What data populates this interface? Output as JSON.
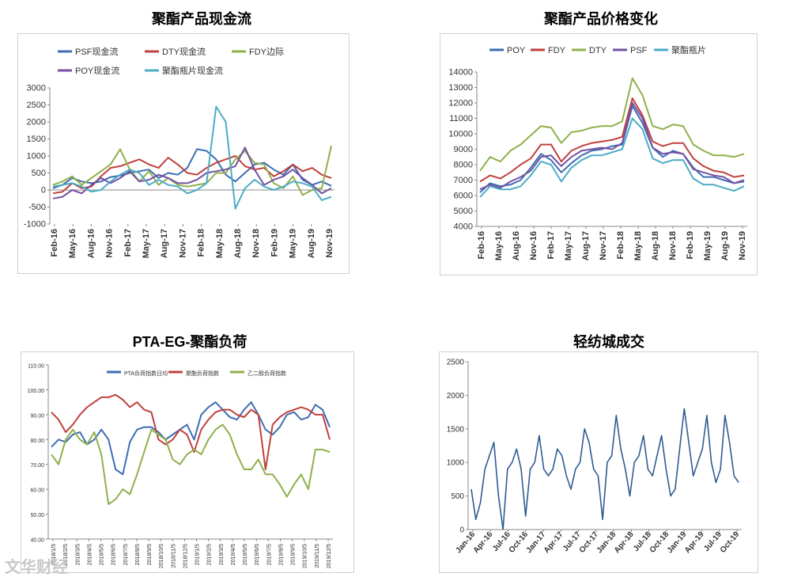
{
  "titles": {
    "c1": "聚酯产品现金流",
    "c2": "聚酯产品价格变化",
    "c3": "PTA-EG-聚酯负荷",
    "c4": "轻纺城成交"
  },
  "watermark": "文华财经",
  "chart_data": [
    {
      "type": "line",
      "title": "聚酯产品现金流",
      "xlabel": "",
      "ylabel": "",
      "ylim": [
        -1000,
        3000
      ],
      "yticks": [
        -1000,
        -500,
        0,
        500,
        1000,
        1500,
        2000,
        2500,
        3000
      ],
      "xticks": [
        "Feb-16",
        "May-16",
        "Aug-16",
        "Nov-16",
        "Feb-17",
        "May-17",
        "Aug-17",
        "Nov-17",
        "Feb-18",
        "May-18",
        "Aug-18",
        "Nov-18",
        "Feb-19",
        "May-19",
        "Aug-19",
        "Nov-19"
      ],
      "legend_position": "top",
      "grid": false,
      "series": [
        {
          "name": "PSF现金流",
          "color": "#3e6db3",
          "values": [
            50,
            150,
            350,
            250,
            200,
            250,
            380,
            420,
            500,
            550,
            600,
            350,
            500,
            450,
            650,
            1200,
            1150,
            900,
            450,
            250,
            500,
            750,
            800,
            600,
            450,
            750,
            300,
            150,
            250,
            120
          ]
        },
        {
          "name": "DTY现金流",
          "color": "#c0403c",
          "values": [
            -100,
            -50,
            200,
            50,
            100,
            400,
            650,
            700,
            800,
            900,
            750,
            650,
            950,
            750,
            500,
            450,
            650,
            800,
            900,
            1000,
            700,
            600,
            650,
            400,
            550,
            750,
            550,
            650,
            450,
            350
          ]
        },
        {
          "name": "FDY边际",
          "color": "#8fb04a",
          "values": [
            150,
            250,
            400,
            150,
            350,
            550,
            750,
            1200,
            600,
            250,
            550,
            150,
            350,
            150,
            100,
            150,
            200,
            500,
            500,
            900,
            1150,
            800,
            750,
            200,
            50,
            400,
            -150,
            0,
            50,
            1300
          ]
        },
        {
          "name": "POY现金流",
          "color": "#7351a0",
          "values": [
            -250,
            -200,
            0,
            -100,
            150,
            350,
            200,
            350,
            550,
            250,
            300,
            450,
            350,
            200,
            200,
            300,
            500,
            550,
            600,
            700,
            1250,
            600,
            150,
            300,
            400,
            600,
            350,
            150,
            -100,
            50
          ]
        },
        {
          "name": "聚酯瓶片现金流",
          "color": "#4bacc6",
          "values": [
            100,
            150,
            200,
            100,
            -50,
            0,
            250,
            450,
            600,
            500,
            150,
            300,
            150,
            100,
            -100,
            0,
            200,
            2450,
            2000,
            -550,
            50,
            300,
            100,
            0,
            100,
            250,
            200,
            100,
            -300,
            -200
          ]
        }
      ]
    },
    {
      "type": "line",
      "title": "聚酯产品价格变化",
      "xlabel": "",
      "ylabel": "",
      "ylim": [
        4000,
        14000
      ],
      "yticks": [
        4000,
        5000,
        6000,
        7000,
        8000,
        9000,
        10000,
        11000,
        12000,
        13000,
        14000
      ],
      "xticks": [
        "Feb-16",
        "May-16",
        "Aug-16",
        "Nov-16",
        "Feb-17",
        "May-17",
        "Aug-17",
        "Nov-17",
        "Feb-18",
        "May-18",
        "Aug-18",
        "Nov-18",
        "Feb-19",
        "May-19",
        "Aug-19",
        "Nov-19"
      ],
      "legend_position": "top",
      "grid": false,
      "series": [
        {
          "name": "POY",
          "color": "#3e6db3",
          "values": [
            6200,
            6800,
            6600,
            6700,
            7000,
            7800,
            8700,
            8300,
            7500,
            8100,
            8600,
            8900,
            9000,
            9200,
            9300,
            11800,
            10700,
            9100,
            8500,
            8900,
            8700,
            7800,
            7200,
            7200,
            7000,
            6800,
            6900
          ]
        },
        {
          "name": "FDY",
          "color": "#c0403c",
          "values": [
            6900,
            7300,
            7100,
            7500,
            8000,
            8400,
            9300,
            9300,
            8200,
            8900,
            9200,
            9400,
            9500,
            9600,
            9800,
            12300,
            11200,
            9500,
            9200,
            9400,
            9400,
            8400,
            7900,
            7600,
            7500,
            7200,
            7300
          ]
        },
        {
          "name": "DTY",
          "color": "#8fb04a",
          "values": [
            7600,
            8500,
            8200,
            8900,
            9300,
            9900,
            10500,
            10400,
            9400,
            10100,
            10200,
            10400,
            10500,
            10500,
            10800,
            13600,
            12500,
            10500,
            10300,
            10600,
            10500,
            9300,
            8900,
            8600,
            8600,
            8500,
            8700
          ]
        },
        {
          "name": "PSF",
          "color": "#7351a0",
          "values": [
            6400,
            6700,
            6500,
            6900,
            7200,
            7600,
            8500,
            8600,
            7900,
            8500,
            8900,
            9000,
            9100,
            9000,
            9400,
            12000,
            11000,
            9100,
            8700,
            8800,
            8700,
            7700,
            7500,
            7300,
            7200,
            6800,
            7000
          ]
        },
        {
          "name": "聚酯瓶片",
          "color": "#4bacc6",
          "values": [
            5900,
            6600,
            6400,
            6400,
            6600,
            7300,
            8200,
            8000,
            6900,
            7800,
            8300,
            8600,
            8600,
            8800,
            9000,
            11000,
            10300,
            8400,
            8100,
            8300,
            8300,
            7100,
            6700,
            6700,
            6500,
            6300,
            6600
          ]
        }
      ]
    },
    {
      "type": "line",
      "title": "PTA-EG-聚酯负荷",
      "xlabel": "",
      "ylabel": "",
      "ylim": [
        40,
        110
      ],
      "yticks": [
        "40.00",
        "50.00",
        "60.00",
        "70.00",
        "80.00",
        "90.00",
        "100.00",
        "110.00"
      ],
      "xticks": [
        "2018/1/5",
        "2018/2/5",
        "2018/3/5",
        "2018/4/5",
        "2018/5/5",
        "2018/6/5",
        "2018/7/5",
        "2018/8/5",
        "2018/9/5",
        "2018/10/5",
        "2018/11/5",
        "2018/12/5",
        "2019/1/5",
        "2019/2/5",
        "2019/3/5",
        "2019/4/5",
        "2019/5/5",
        "2019/6/5",
        "2019/7/5",
        "2019/8/5",
        "2019/9/5",
        "2019/10/5",
        "2019/11/5",
        "2019/12/5"
      ],
      "legend_position": "top",
      "grid": false,
      "series": [
        {
          "name": "PTA负荷指数日均",
          "color": "#3e6db3",
          "values": [
            77,
            80,
            79,
            82,
            83,
            78,
            80,
            84,
            80,
            68,
            66,
            79,
            84,
            85,
            85,
            83,
            80,
            82,
            84,
            86,
            80,
            90,
            93,
            95,
            92,
            89,
            88,
            92,
            95,
            90,
            84,
            82,
            85,
            90,
            91,
            88,
            89,
            94,
            92,
            85
          ]
        },
        {
          "name": "聚酯负荷指数",
          "color": "#c0403c",
          "values": [
            91,
            88,
            83,
            86,
            90,
            93,
            95,
            97,
            97,
            98,
            96,
            93,
            95,
            92,
            91,
            80,
            78,
            80,
            84,
            82,
            75,
            84,
            88,
            91,
            92,
            92,
            90,
            89,
            92,
            90,
            68,
            86,
            89,
            91,
            92,
            93,
            92,
            90,
            90,
            80
          ]
        },
        {
          "name": "乙二醇负荷指数",
          "color": "#8fb04a",
          "values": [
            74,
            70,
            80,
            84,
            80,
            78,
            83,
            74,
            54,
            56,
            60,
            58,
            66,
            75,
            84,
            82,
            80,
            72,
            70,
            74,
            76,
            74,
            80,
            84,
            86,
            82,
            74,
            68,
            68,
            72,
            66,
            66,
            62,
            57,
            62,
            66,
            60,
            76,
            76,
            75
          ]
        }
      ]
    },
    {
      "type": "line",
      "title": "轻纺城成交",
      "xlabel": "",
      "ylabel": "",
      "ylim": [
        0,
        2500
      ],
      "yticks": [
        0,
        500,
        1000,
        1500,
        2000,
        2500
      ],
      "xticks": [
        "Jan-16",
        "Apr-16",
        "Jul-16",
        "Oct-16",
        "Jan-17",
        "Apr-17",
        "Jul-17",
        "Oct-17",
        "Jan-18",
        "Apr-18",
        "Jul-18",
        "Oct-18",
        "Jan-19",
        "Apr-19",
        "Jul-19",
        "Oct-19"
      ],
      "legend_position": "none",
      "grid": false,
      "series": [
        {
          "name": "",
          "color": "#2e5c91",
          "values": [
            600,
            150,
            400,
            900,
            1100,
            1300,
            500,
            0,
            900,
            1000,
            1200,
            900,
            200,
            900,
            1000,
            1400,
            900,
            800,
            900,
            1200,
            1100,
            800,
            600,
            900,
            1000,
            1500,
            1300,
            900,
            800,
            150,
            1000,
            1100,
            1700,
            1200,
            900,
            500,
            1000,
            1100,
            1400,
            900,
            800,
            1100,
            1400,
            900,
            500,
            600,
            1200,
            1800,
            1300,
            800,
            1000,
            1200,
            1700,
            1000,
            700,
            900,
            1700,
            1300,
            800,
            700
          ]
        }
      ]
    }
  ]
}
